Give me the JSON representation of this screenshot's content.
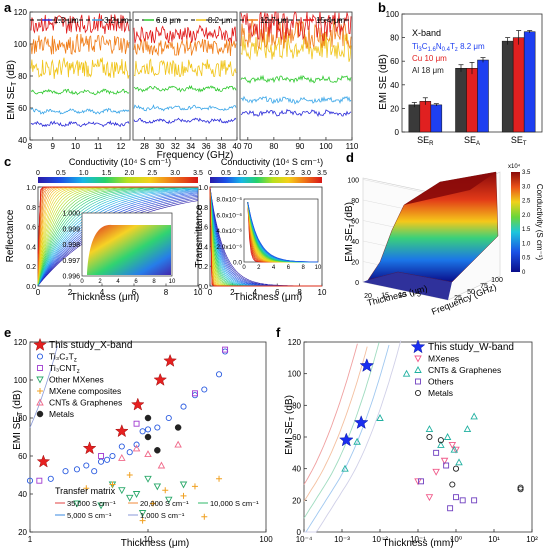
{
  "colors": {
    "axis": "#333333",
    "bar_black": "#3a3a3a",
    "bar_red": "#e02020",
    "bar_blue": "#1e3ff0",
    "t1": "#2a2ad8",
    "t2": "#3aa6e8",
    "t3": "#2ec82e",
    "t4": "#f0c418",
    "t5": "#f07d18",
    "t6": "#e01818"
  },
  "panel_a": {
    "label": "a",
    "xlabel": "Frequency (GHz)",
    "ylabel": "EMI SE",
    "ylabel_sub": "T",
    "ylabel_unit": " (dB)",
    "legend": [
      "1.3 μm",
      "3.2 μm",
      "6.0 μm",
      "8.2 μm",
      "12.7 μm",
      "15.4 μm"
    ],
    "threshold": 115
  },
  "panel_b": {
    "label": "b",
    "ylabel": "EMI SE (dB)",
    "legend_title": "X-band",
    "legend_ti": "Ti",
    "legend_ti_rest": "C",
    "legend_ti_full": "Ti3C1.6N0.4Tz 8.2 μm",
    "legend_cu": "Cu 10 μm",
    "legend_al": "Al 18 μm",
    "cat_base": [
      "SE",
      "SE",
      "SE"
    ],
    "cat_sub": [
      "R",
      "A",
      "T"
    ]
  },
  "panel_c": {
    "label": "c",
    "left_title": "Conductivity (10⁴ S cm⁻¹)",
    "right_title": "Conductivity (10⁴ S cm⁻¹)",
    "left_ylabel": "Reflectance",
    "right_ylabel": "Transmittance",
    "xlabel_left": "Thickness (μm)",
    "xlabel_right": "Thickness (μm)",
    "colorbar_ticks": [
      "0",
      "0.5",
      "1.0",
      "1.5",
      "2.0",
      "2.5",
      "3.0",
      "3.5"
    ]
  },
  "panel_d": {
    "label": "d",
    "zlabel": "EMI SE",
    "zlabel_sub": "T",
    "zlabel_unit": " (dB)",
    "xlabel": "Thickness (μm)",
    "ylabel": "Frequency (GHz)",
    "cbar_label": "Conductivity (S cm⁻¹)",
    "cbar_exp": "x10⁴"
  },
  "panel_e": {
    "label": "e",
    "ylabel": "EMI SE",
    "ylabel_sub": "T",
    "ylabel_unit": " (dB)",
    "xlabel": "Thickness (μm)",
    "legend": [
      "This study_X-band",
      "Ti₃C₂T",
      "Ti₃CNT",
      "Other MXenes",
      "MXene composites",
      "CNTs & Graphenes",
      "Metals"
    ],
    "transfer_title": "Transfer matrix",
    "transfer": [
      "35,000 S cm⁻¹",
      "20,000 S cm⁻¹",
      "10,000 S cm⁻¹",
      "5,000 S cm⁻¹",
      "1,000 S cm⁻¹"
    ]
  },
  "panel_f": {
    "label": "f",
    "ylabel": "EMI SE",
    "ylabel_sub": "T",
    "ylabel_unit": " (dB)",
    "xlabel": "Thickness (mm)",
    "legend": [
      "This study_W-band",
      "MXenes",
      "CNTs & Graphenes",
      "Others",
      "Metals"
    ]
  },
  "chart_data": [
    {
      "panel": "a",
      "type": "line",
      "x_segments": [
        [
          8,
          12.4
        ],
        [
          26.5,
          40
        ],
        [
          67,
          110
        ]
      ],
      "xticks": [
        "8",
        "9",
        "10",
        "11",
        "12",
        "28",
        "30",
        "32",
        "34",
        "36",
        "38",
        "40",
        "70",
        "80",
        "90",
        "100",
        "110"
      ],
      "ylim": [
        40,
        120
      ],
      "yticks": [
        "40",
        "60",
        "80",
        "100",
        "120"
      ],
      "series": [
        {
          "name": "1.3 μm",
          "values_mean": [
            50,
            52,
            57
          ]
        },
        {
          "name": "3.2 μm",
          "values_mean": [
            58,
            60,
            65
          ]
        },
        {
          "name": "6.0 μm",
          "values_mean": [
            70,
            72,
            78
          ]
        },
        {
          "name": "8.2 μm",
          "values_mean": [
            85,
            85,
            98
          ]
        },
        {
          "name": "12.7 μm",
          "values_mean": [
            100,
            98,
            106
          ]
        },
        {
          "name": "15.4 μm",
          "values_mean": [
            113,
            106,
            112
          ]
        }
      ]
    },
    {
      "panel": "b",
      "type": "bar",
      "categories": [
        "SE_R",
        "SE_A",
        "SE_T"
      ],
      "series": [
        {
          "name": "Ti3C1.6N0.4Tz 8.2 μm",
          "values": [
            23,
            54,
            77
          ],
          "err": [
            2,
            3,
            3
          ]
        },
        {
          "name": "Cu 10 μm",
          "values": [
            26,
            54,
            80
          ],
          "err": [
            3,
            5,
            6
          ]
        },
        {
          "name": "Al 18 μm",
          "values": [
            23,
            61,
            85
          ],
          "err": [
            1,
            2,
            1
          ]
        }
      ],
      "ylim": [
        0,
        100
      ],
      "yticks": [
        "0",
        "20",
        "40",
        "60",
        "80",
        "100"
      ]
    },
    {
      "panel": "c-left",
      "type": "line",
      "xlim": [
        0,
        10
      ],
      "ylim": [
        0,
        1.0
      ],
      "xticks": [
        "0",
        "2",
        "4",
        "6",
        "8",
        "10"
      ],
      "yticks": [
        "0.0",
        "0.2",
        "0.4",
        "0.6",
        "0.8",
        "1.0"
      ],
      "inset_yticks": [
        "0.996",
        "0.997",
        "0.998",
        "0.999",
        "1.000"
      ],
      "inset_xticks": [
        "0",
        "2",
        "4",
        "6",
        "8",
        "10"
      ]
    },
    {
      "panel": "c-right",
      "type": "line",
      "xlim": [
        0,
        10
      ],
      "ylim": [
        0,
        1.0
      ],
      "xticks": [
        "0",
        "2",
        "4",
        "6",
        "8",
        "10"
      ],
      "yticks": [
        "0.0",
        "0.2",
        "0.4",
        "0.6",
        "0.8",
        "1.0"
      ],
      "inset_yticks": [
        "0.0",
        "2.0x10⁻⁶",
        "4.0x10⁻⁶",
        "6.0x10⁻⁶",
        "8.0x10⁻⁶"
      ],
      "inset_xticks": [
        "0",
        "2",
        "4",
        "6",
        "8",
        "10"
      ]
    },
    {
      "panel": "d",
      "type": "heatmap",
      "zticks": [
        "0",
        "20",
        "40",
        "60",
        "80",
        "100"
      ],
      "xticks": [
        "20",
        "15",
        "10",
        "5"
      ],
      "yticks": [
        "25",
        "50",
        "75",
        "100"
      ],
      "cbar_ticks": [
        "0",
        "0.5",
        "1.0",
        "1.5",
        "2.0",
        "2.5",
        "3.0",
        "3.5"
      ]
    },
    {
      "panel": "e",
      "type": "scatter",
      "x_scale": "log",
      "xlim": [
        1,
        100
      ],
      "ylim": [
        20,
        120
      ],
      "xticks": [
        "1",
        "10",
        "100"
      ],
      "yticks": [
        "20",
        "40",
        "60",
        "80",
        "100",
        "120"
      ],
      "series": [
        {
          "name": "This study_X-band",
          "x": [
            1.3,
            3.2,
            6.0,
            8.2,
            12.7,
            15.4
          ],
          "y": [
            57,
            64,
            73,
            87,
            100,
            110
          ]
        },
        {
          "name": "Ti3C2Tz",
          "x": [
            1.0,
            1.5,
            2.0,
            2.5,
            3.0,
            3.5,
            4.0,
            4.5,
            5.0,
            6.0,
            7.0,
            8.0,
            9.0,
            10.0,
            12.0,
            15.0,
            20.0,
            25.0,
            30.0,
            40.0,
            45.0
          ],
          "y": [
            47,
            48,
            52,
            53,
            55,
            52,
            57,
            58,
            60,
            65,
            62,
            66,
            73,
            74,
            75,
            80,
            86,
            92,
            95,
            103,
            115
          ]
        },
        {
          "name": "Ti3CNTz",
          "x": [
            1.2,
            4.0,
            8.0,
            25.0,
            45.0
          ],
          "y": [
            47,
            60,
            77,
            93,
            116
          ]
        },
        {
          "name": "Other MXenes",
          "x": [
            2.5,
            4.0,
            5.0,
            6.0,
            7.0,
            8.0,
            9.0,
            10.0,
            12.0,
            15.0,
            20.0
          ],
          "y": [
            35,
            34,
            45,
            42,
            38,
            40,
            30,
            48,
            44,
            37,
            45
          ]
        },
        {
          "name": "MXene composites",
          "x": [
            3.0,
            5.0,
            7.0,
            9.0,
            11.0,
            14.0,
            20.0,
            25.0,
            30.0,
            40.0
          ],
          "y": [
            43,
            45,
            50,
            26,
            35,
            42,
            39,
            44,
            28,
            48
          ]
        },
        {
          "name": "CNTs & Graphenes",
          "x": [
            6.0,
            8.0,
            10.0,
            13.0,
            18.0
          ],
          "y": [
            59,
            64,
            61,
            55,
            66
          ]
        },
        {
          "name": "Metals",
          "x": [
            10.0,
            10.0,
            12.0,
            18.0
          ],
          "y": [
            80,
            70,
            63,
            75
          ]
        }
      ]
    },
    {
      "panel": "f",
      "type": "scatter",
      "x_scale": "log",
      "xlim": [
        0.0001,
        100
      ],
      "ylim": [
        0,
        120
      ],
      "xticks": [
        "10⁻⁴",
        "10⁻³",
        "10⁻²",
        "10⁻¹",
        "10⁰",
        "10¹",
        "10²"
      ],
      "yticks": [
        "0",
        "20",
        "40",
        "60",
        "80",
        "100",
        "120"
      ],
      "series": [
        {
          "name": "This study_W-band",
          "x": [
            0.0013,
            0.0032,
            0.0045
          ],
          "y": [
            58,
            69,
            105
          ]
        },
        {
          "name": "MXenes",
          "x": [
            0.1,
            0.2,
            0.3,
            0.5,
            0.8,
            1.0
          ],
          "y": [
            32,
            22,
            38,
            45,
            55,
            52
          ]
        },
        {
          "name": "CNTs & Graphenes",
          "x": [
            0.0012,
            0.0025,
            0.01,
            0.05,
            0.2,
            0.4,
            0.6,
            0.9,
            1.2,
            2.0,
            3.0
          ],
          "y": [
            40,
            57,
            72,
            100,
            65,
            55,
            60,
            52,
            44,
            65,
            73
          ]
        },
        {
          "name": "Others",
          "x": [
            0.12,
            0.3,
            0.55,
            0.7,
            1.0,
            1.5,
            3.0
          ],
          "y": [
            32,
            50,
            42,
            15,
            22,
            20,
            20
          ]
        },
        {
          "name": "Metals",
          "x": [
            0.2,
            0.4,
            0.8,
            1.0,
            50,
            50
          ],
          "y": [
            60,
            58,
            30,
            40,
            28,
            27
          ]
        }
      ]
    }
  ]
}
